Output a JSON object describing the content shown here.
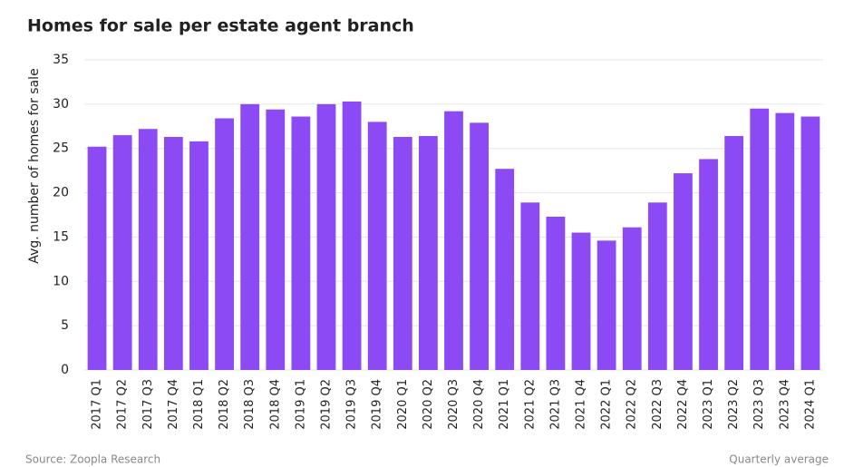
{
  "chart_data": {
    "type": "bar",
    "title": "Homes for sale per estate agent branch",
    "y_label": "Avg. number of homes for sale",
    "source": "Source: Zoopla Research",
    "note": "Quarterly average",
    "categories": [
      "2017 Q1",
      "2017 Q2",
      "2017 Q3",
      "2017 Q4",
      "2018 Q1",
      "2018 Q2",
      "2018 Q3",
      "2018 Q4",
      "2019 Q1",
      "2019 Q2",
      "2019 Q3",
      "2019 Q4",
      "2020 Q1",
      "2020 Q2",
      "2020 Q3",
      "2020 Q4",
      "2021 Q1",
      "2021 Q2",
      "2021 Q3",
      "2021 Q4",
      "2022 Q1",
      "2022 Q2",
      "2022 Q3",
      "2022 Q4",
      "2023 Q1",
      "2023 Q2",
      "2023 Q3",
      "2023 Q4",
      "2024 Q1"
    ],
    "values": [
      25.2,
      26.5,
      27.2,
      26.3,
      25.8,
      28.4,
      30.0,
      29.4,
      28.6,
      30.0,
      30.3,
      28.0,
      26.3,
      26.4,
      29.2,
      27.9,
      22.7,
      18.9,
      17.3,
      15.5,
      14.6,
      16.1,
      18.9,
      22.2,
      23.8,
      26.4,
      29.5,
      29.0,
      28.6
    ],
    "color": "#8c4af4",
    "ylim": [
      0,
      35
    ],
    "yticks": [
      0,
      5,
      10,
      15,
      20,
      25,
      30,
      35
    ],
    "grid": true
  }
}
